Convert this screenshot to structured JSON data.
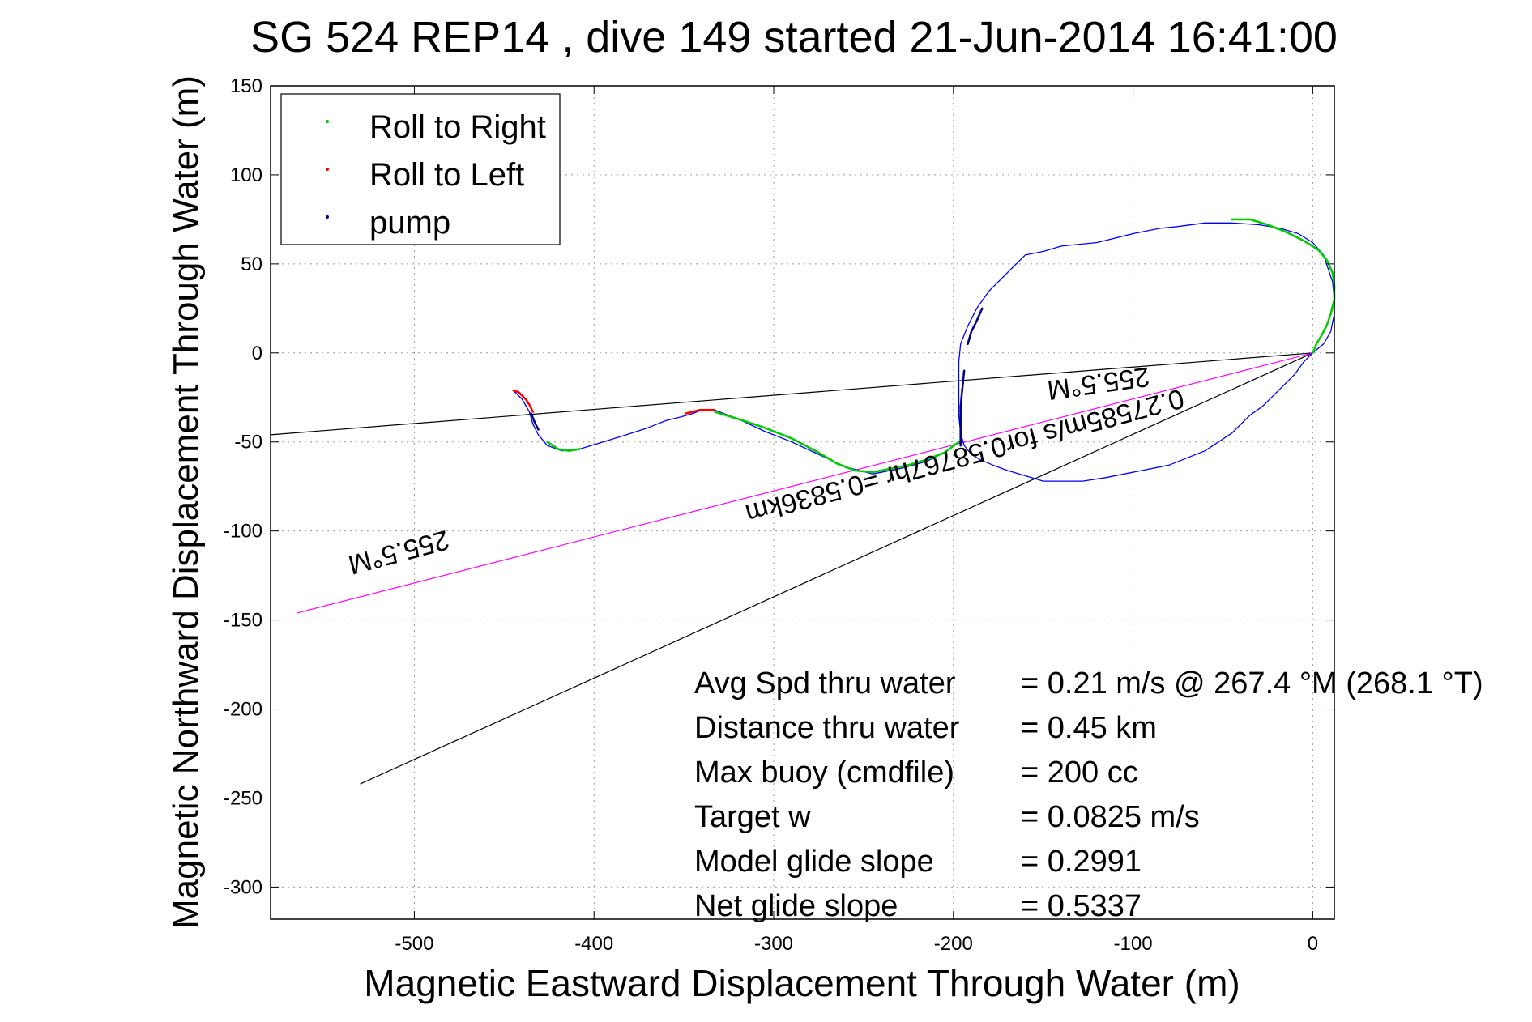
{
  "chart_data": {
    "type": "line",
    "title": "SG 524   REP14  , dive 149 started 21-Jun-2014 16:41:00",
    "xlabel": "Magnetic Eastward Displacement Through Water (m)",
    "ylabel": "Magnetic Northward Displacement Through Water (m)",
    "xlim": [
      -580,
      12
    ],
    "ylim": [
      -318,
      150
    ],
    "xticks": [
      -500,
      -400,
      -300,
      -200,
      -100,
      0
    ],
    "yticks": [
      150,
      100,
      50,
      0,
      -50,
      -100,
      -150,
      -200,
      -250,
      -300
    ],
    "grid": true,
    "legend_position": "top-left",
    "legend": [
      {
        "label": "Roll to Right",
        "color": "#00cc00"
      },
      {
        "label": "Roll to Left",
        "color": "#ff0000"
      },
      {
        "label": "pump",
        "color": "#000080"
      }
    ],
    "series": [
      {
        "type": "line",
        "color": "#0000ff",
        "x": [
          0,
          6,
          10,
          12,
          12,
          11,
          6,
          0,
          -8,
          -18,
          -30,
          -45,
          -60,
          -75,
          -85,
          -100,
          -120,
          -140,
          -150,
          -160,
          -170,
          -180,
          -187,
          -192,
          -196,
          -197,
          -197,
          -197,
          -196,
          -194,
          -190,
          -185,
          -178,
          -170,
          -160,
          -150,
          -140,
          -128,
          -115,
          -100,
          -80,
          -60,
          -45,
          -35,
          -28,
          -20,
          -10,
          -5,
          0
        ],
        "y": [
          0,
          5,
          12,
          22,
          30,
          40,
          55,
          62,
          67,
          70,
          72,
          73,
          73,
          71,
          70,
          67,
          62,
          60,
          57,
          55,
          45,
          35,
          25,
          15,
          5,
          -5,
          -20,
          -35,
          -45,
          -52,
          -57,
          -60,
          -63,
          -66,
          -69,
          -72,
          -72,
          -72,
          -70,
          -67,
          -63,
          -55,
          -45,
          -35,
          -30,
          -22,
          -12,
          -5,
          0
        ]
      },
      {
        "type": "line",
        "color": "#0000ff",
        "x": [
          -197,
          -205,
          -215,
          -230,
          -245,
          -260,
          -275,
          -290,
          -305,
          -320,
          -333,
          -340,
          -345,
          -352,
          -360,
          -370,
          -382,
          -395,
          -408,
          -418,
          -426,
          -431,
          -434,
          -436,
          -440,
          -445
        ],
        "y": [
          -50,
          -56,
          -61,
          -65,
          -68,
          -64,
          -57,
          -50,
          -44,
          -37,
          -32,
          -32,
          -34,
          -36,
          -38,
          -42,
          -46,
          -50,
          -54,
          -55,
          -52,
          -46,
          -40,
          -33,
          -26,
          -21
        ]
      },
      {
        "type": "line",
        "color": "#00cc00",
        "x": [
          0,
          2,
          5,
          8,
          10,
          12,
          12,
          11,
          8,
          3,
          -5,
          -15,
          -25,
          -35,
          -45
        ],
        "y": [
          0,
          5,
          10,
          16,
          22,
          30,
          38,
          45,
          52,
          58,
          63,
          68,
          72,
          75,
          75
        ]
      },
      {
        "type": "line",
        "color": "#00cc00",
        "x": [
          -197,
          -205,
          -215,
          -225,
          -235,
          -245,
          -255,
          -265,
          -275,
          -290,
          -305,
          -320,
          -333
        ],
        "y": [
          -50,
          -56,
          -60,
          -63,
          -65,
          -67,
          -66,
          -62,
          -56,
          -48,
          -42,
          -37,
          -33
        ]
      },
      {
        "type": "line",
        "color": "#00cc00",
        "x": [
          -408,
          -414,
          -420,
          -426
        ],
        "y": [
          -54,
          -55,
          -54,
          -50
        ]
      },
      {
        "type": "line",
        "color": "#ff0000",
        "x": [
          -333,
          -337,
          -341,
          -345,
          -349
        ],
        "y": [
          -32,
          -32,
          -32,
          -33,
          -34
        ]
      },
      {
        "type": "line",
        "color": "#ff0000",
        "x": [
          -434,
          -436,
          -438,
          -440,
          -442,
          -445
        ],
        "y": [
          -33,
          -29,
          -26,
          -24,
          -22,
          -21
        ]
      },
      {
        "type": "line",
        "color": "#000080",
        "x": [
          -194,
          -195,
          -196,
          -196,
          -196,
          -196
        ],
        "y": [
          -10,
          -20,
          -30,
          -40,
          -46,
          -52
        ]
      },
      {
        "type": "line",
        "color": "#000080",
        "x": [
          -192,
          -190,
          -187,
          -184
        ],
        "y": [
          5,
          12,
          18,
          25
        ]
      },
      {
        "type": "line",
        "color": "#000080",
        "x": [
          -431,
          -433,
          -435
        ],
        "y": [
          -43,
          -39,
          -34
        ]
      },
      {
        "type": "line",
        "color": "#000000",
        "x": [
          0,
          -580
        ],
        "y": [
          0,
          -46
        ]
      },
      {
        "type": "line",
        "color": "#000000",
        "x": [
          0,
          -530
        ],
        "y": [
          0,
          -242
        ]
      },
      {
        "type": "line",
        "color": "#ff00ff",
        "x": [
          0,
          -565
        ],
        "y": [
          0,
          -146
        ]
      }
    ],
    "rotated_labels": [
      {
        "text": "255.5°M",
        "x": -510,
        "y": -107,
        "angle": 165
      },
      {
        "text": "0.27585m/s for0.58767hr =0.5836km",
        "x": -195,
        "y": -53,
        "angle": 165
      },
      {
        "text": "255.5°M",
        "x": -120,
        "y": -12,
        "angle": 172
      }
    ],
    "annotations": [
      {
        "label": "Avg Spd thru water",
        "value": "=  0.21 m/s @ 267.4 °M (268.1 °T)"
      },
      {
        "label": "Distance thru water",
        "value": "=  0.45 km"
      },
      {
        "label": "Max buoy (cmdfile)",
        "value": "= 200 cc"
      },
      {
        "label": "Target w",
        "value": "= 0.0825 m/s"
      },
      {
        "label": "Model glide slope",
        "value": "= 0.2991"
      },
      {
        "label": "Net glide slope",
        "value": "= 0.5337"
      }
    ]
  }
}
